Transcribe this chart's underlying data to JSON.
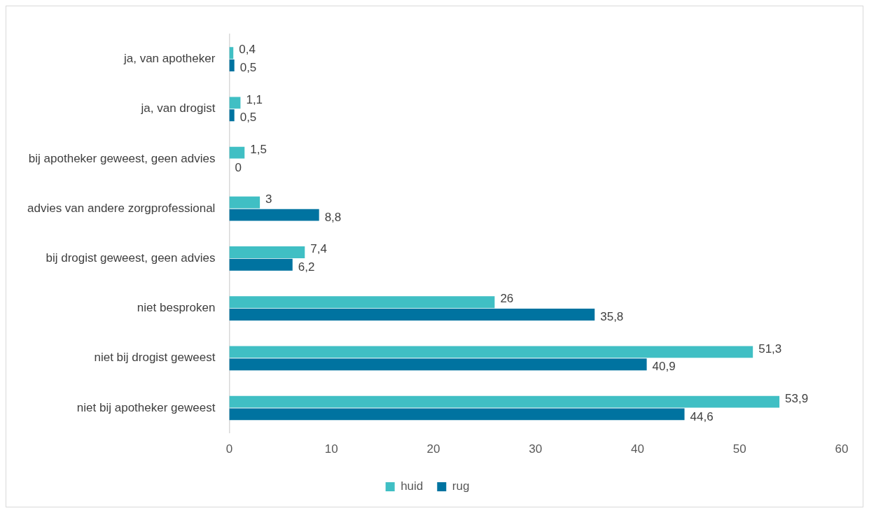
{
  "chart_data": {
    "type": "bar",
    "orientation": "horizontal",
    "categories": [
      "ja, van apotheker",
      "ja, van drogist",
      "bij apotheker geweest, geen advies",
      "advies van andere zorgprofessional",
      "bij drogist geweest, geen advies",
      "niet besproken",
      "niet bij drogist geweest",
      "niet bij apotheker geweest"
    ],
    "series": [
      {
        "name": "huid",
        "color": "#40bfc4",
        "values": [
          0.4,
          1.1,
          1.5,
          3,
          7.4,
          26,
          51.3,
          53.9
        ],
        "value_labels": [
          "0,4",
          "1,1",
          "1,5",
          "3",
          "7,4",
          "26",
          "51,3",
          "53,9"
        ]
      },
      {
        "name": "rug",
        "color": "#0073a0",
        "values": [
          0.5,
          0.5,
          0,
          8.8,
          6.2,
          35.8,
          40.9,
          44.6
        ],
        "value_labels": [
          "0,5",
          "0,5",
          "0",
          "8,8",
          "6,2",
          "35,8",
          "40,9",
          "44,6"
        ]
      }
    ],
    "xlim": [
      0,
      60
    ],
    "xticks": [
      0,
      10,
      20,
      30,
      40,
      50,
      60
    ],
    "grid": false,
    "legend": "bottom"
  }
}
